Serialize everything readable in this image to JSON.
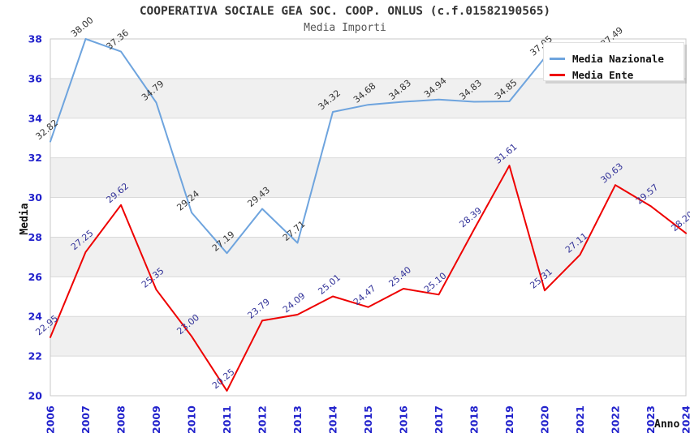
{
  "header": {
    "title": "COOPERATIVA SOCIALE GEA SOC. COOP. ONLUS (c.f.01582190565)",
    "subtitle": "Media Importi"
  },
  "legend": {
    "items": [
      {
        "label": "Media Nazionale",
        "color": "#6ea4de"
      },
      {
        "label": "Media Ente",
        "color": "#ee0000"
      }
    ]
  },
  "chart_data": {
    "type": "line",
    "title": "COOPERATIVA SOCIALE GEA SOC. COOP. ONLUS (c.f.01582190565)",
    "subtitle": "Media Importi",
    "xlabel": "Anno",
    "ylabel": "Media",
    "x": [
      2006,
      2007,
      2008,
      2009,
      2010,
      2011,
      2012,
      2013,
      2014,
      2015,
      2016,
      2017,
      2018,
      2019,
      2020,
      2021,
      2022,
      2023,
      2024
    ],
    "series": [
      {
        "name": "Media Nazionale",
        "color": "#6ea4de",
        "label_color": "#333333",
        "values": [
          32.82,
          38.0,
          37.36,
          34.79,
          29.24,
          27.19,
          29.43,
          27.71,
          34.32,
          34.68,
          34.83,
          34.94,
          34.83,
          34.85,
          37.05,
          null,
          37.49,
          null,
          null
        ]
      },
      {
        "name": "Media Ente",
        "color": "#ee0000",
        "label_color": "#333399",
        "values": [
          22.95,
          27.25,
          29.62,
          25.35,
          23.0,
          20.25,
          23.79,
          24.09,
          25.01,
          24.47,
          25.4,
          25.1,
          28.39,
          31.61,
          25.31,
          27.11,
          30.63,
          29.57,
          28.2
        ]
      }
    ],
    "ylim": [
      20,
      38
    ],
    "ytick_step": 2,
    "yticks": [
      38,
      36,
      34,
      32,
      30,
      28,
      26,
      24,
      22,
      20
    ],
    "grid": true,
    "band_colors": [
      "#ffffff",
      "#f0f0f0"
    ],
    "gridline_color": "#d9d9d9",
    "border_color": "#c8c8c8",
    "tick_label_color": "#2222cc",
    "legend_position": "top-right"
  }
}
